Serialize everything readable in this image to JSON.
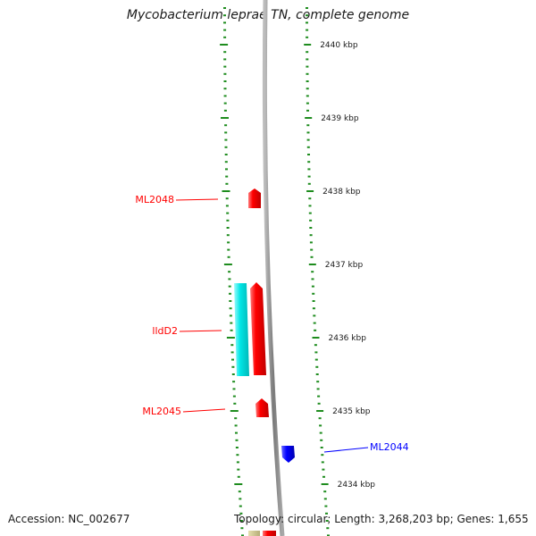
{
  "title": "Mycobacterium leprae TN, complete genome",
  "footer": {
    "accession": "Accession: NC_002677",
    "summary": "Topology: circular; Length: 3,268,203 bp; Genes: 1,655"
  },
  "colors": {
    "background": "#ffffff",
    "backbone": "#8c8c8c",
    "tick": "#1e8c1e",
    "forward_gene": "#ff0000",
    "reverse_gene": "#0000ff",
    "other_feature": "#00e0e0",
    "bottom_feature": "#c8c08a"
  },
  "ruler": {
    "unit": "kbp",
    "labels": [
      "2440 kbp",
      "2439 kbp",
      "2438 kbp",
      "2437 kbp",
      "2436 kbp",
      "2435 kbp",
      "2434 kbp"
    ]
  },
  "features": [
    {
      "label": "ML2048",
      "strand": "forward",
      "color": "#ff0000"
    },
    {
      "label": "lldD2",
      "strand": "forward",
      "color": "#ff0000"
    },
    {
      "label": "",
      "strand": "other",
      "color": "#00e0e0"
    },
    {
      "label": "ML2045",
      "strand": "forward",
      "color": "#ff0000"
    },
    {
      "label": "ML2044",
      "strand": "reverse",
      "color": "#0000ff"
    }
  ]
}
